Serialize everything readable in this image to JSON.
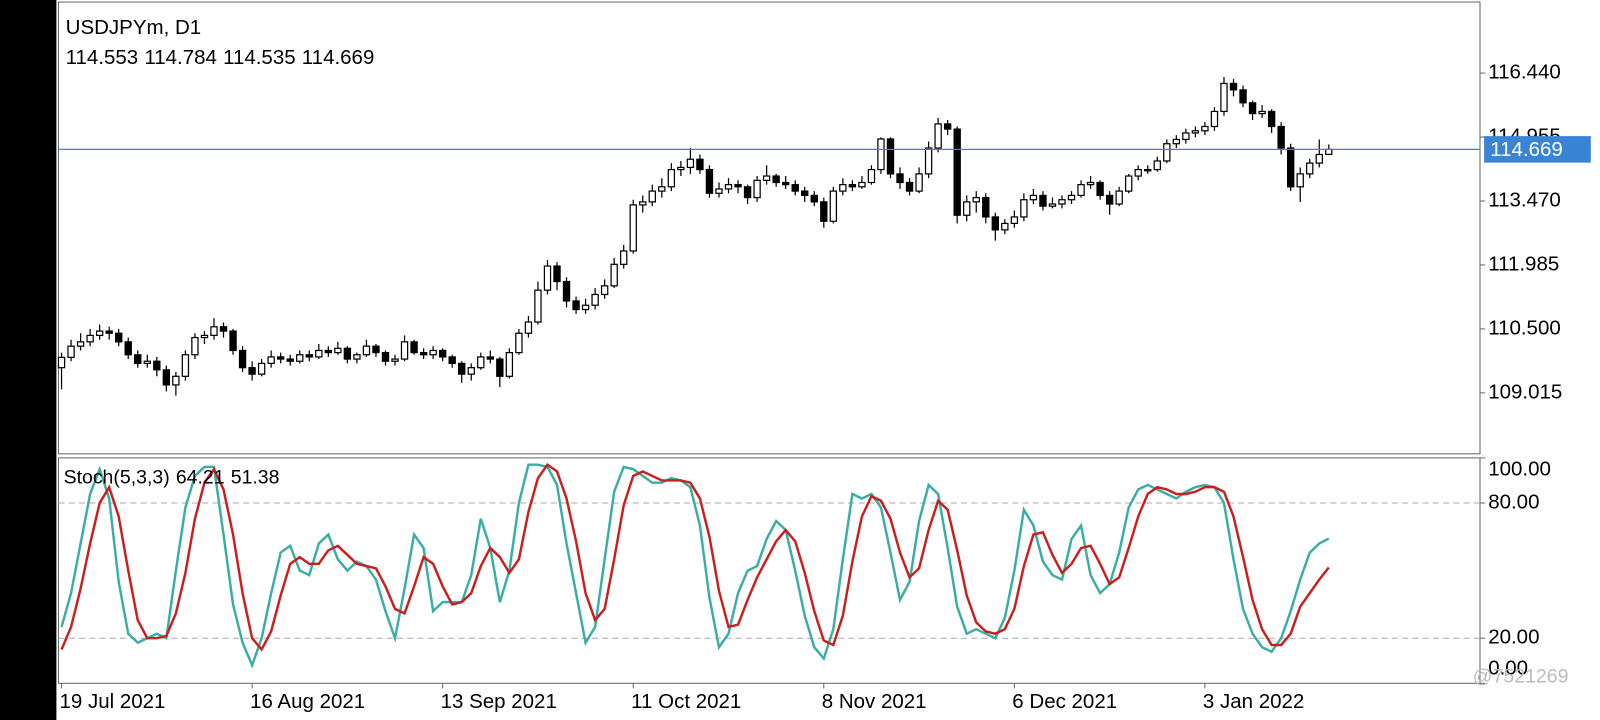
{
  "chart_data": [
    {
      "type": "candlestick",
      "title": "USDJPYm, D1",
      "categories": [
        "19 Jul 2021",
        null,
        null,
        null,
        null,
        null,
        null,
        null,
        null,
        null,
        null,
        null,
        null,
        null,
        null,
        null,
        null,
        null,
        null,
        null,
        "16 Aug 2021",
        null,
        null,
        null,
        null,
        null,
        null,
        null,
        null,
        null,
        null,
        null,
        null,
        null,
        null,
        null,
        null,
        null,
        null,
        null,
        "13 Sep 2021",
        null,
        null,
        null,
        null,
        null,
        null,
        null,
        null,
        null,
        null,
        null,
        null,
        null,
        null,
        null,
        null,
        null,
        null,
        null,
        "11 Oct 2021",
        null,
        null,
        null,
        null,
        null,
        null,
        null,
        null,
        null,
        null,
        null,
        null,
        null,
        null,
        null,
        null,
        null,
        null,
        null,
        "8 Nov 2021",
        null,
        null,
        null,
        null,
        null,
        null,
        null,
        null,
        null,
        null,
        null,
        null,
        null,
        null,
        null,
        null,
        null,
        null,
        null,
        "6 Dec 2021",
        null,
        null,
        null,
        null,
        null,
        null,
        null,
        null,
        null,
        null,
        null,
        null,
        null,
        null,
        null,
        null,
        null,
        null,
        null,
        "3 Jan 2022",
        null,
        null,
        null,
        null,
        null,
        null,
        null,
        null,
        null,
        null,
        null,
        null,
        null
      ],
      "ohlc": [
        [
          109.6,
          109.95,
          109.1,
          109.84
        ],
        [
          109.84,
          110.25,
          109.75,
          110.1
        ],
        [
          110.1,
          110.4,
          110.0,
          110.2
        ],
        [
          110.2,
          110.5,
          110.1,
          110.35
        ],
        [
          110.35,
          110.6,
          110.25,
          110.45
        ],
        [
          110.45,
          110.55,
          110.25,
          110.4
        ],
        [
          110.4,
          110.5,
          110.1,
          110.2
        ],
        [
          110.2,
          110.3,
          109.8,
          109.9
        ],
        [
          109.9,
          110.0,
          109.6,
          109.7
        ],
        [
          109.7,
          109.9,
          109.6,
          109.75
        ],
        [
          109.75,
          109.85,
          109.4,
          109.55
        ],
        [
          109.55,
          109.65,
          109.05,
          109.2
        ],
        [
          109.2,
          109.5,
          108.95,
          109.4
        ],
        [
          109.4,
          110.0,
          109.3,
          109.9
        ],
        [
          109.9,
          110.4,
          109.8,
          110.3
        ],
        [
          110.3,
          110.45,
          110.15,
          110.35
        ],
        [
          110.35,
          110.75,
          110.25,
          110.55
        ],
        [
          110.55,
          110.65,
          110.3,
          110.45
        ],
        [
          110.45,
          110.5,
          109.9,
          110.0
        ],
        [
          110.0,
          110.1,
          109.5,
          109.6
        ],
        [
          109.6,
          109.75,
          109.3,
          109.45
        ],
        [
          109.45,
          109.8,
          109.4,
          109.7
        ],
        [
          109.7,
          110.0,
          109.6,
          109.85
        ],
        [
          109.85,
          109.95,
          109.7,
          109.8
        ],
        [
          109.8,
          109.9,
          109.65,
          109.75
        ],
        [
          109.75,
          110.0,
          109.7,
          109.9
        ],
        [
          109.9,
          110.0,
          109.75,
          109.85
        ],
        [
          109.85,
          110.15,
          109.8,
          110.0
        ],
        [
          110.0,
          110.1,
          109.85,
          109.95
        ],
        [
          109.95,
          110.2,
          109.9,
          110.05
        ],
        [
          110.05,
          110.1,
          109.7,
          109.8
        ],
        [
          109.8,
          109.95,
          109.7,
          109.9
        ],
        [
          109.9,
          110.25,
          109.85,
          110.1
        ],
        [
          110.1,
          110.15,
          109.85,
          109.95
        ],
        [
          109.95,
          110.0,
          109.65,
          109.75
        ],
        [
          109.75,
          109.9,
          109.65,
          109.8
        ],
        [
          109.8,
          110.35,
          109.75,
          110.2
        ],
        [
          110.2,
          110.25,
          109.9,
          109.95
        ],
        [
          109.95,
          110.05,
          109.8,
          109.9
        ],
        [
          109.9,
          110.1,
          109.8,
          110.0
        ],
        [
          110.0,
          110.05,
          109.75,
          109.85
        ],
        [
          109.85,
          109.9,
          109.6,
          109.7
        ],
        [
          109.7,
          109.75,
          109.25,
          109.45
        ],
        [
          109.45,
          109.7,
          109.3,
          109.6
        ],
        [
          109.6,
          109.95,
          109.55,
          109.85
        ],
        [
          109.85,
          110.0,
          109.7,
          109.8
        ],
        [
          109.8,
          109.85,
          109.15,
          109.4
        ],
        [
          109.4,
          110.05,
          109.35,
          109.95
        ],
        [
          109.95,
          110.5,
          109.9,
          110.4
        ],
        [
          110.4,
          110.8,
          110.3,
          110.66
        ],
        [
          110.66,
          111.6,
          110.6,
          111.4
        ],
        [
          111.4,
          112.1,
          111.3,
          111.96
        ],
        [
          111.96,
          112.05,
          111.4,
          111.6
        ],
        [
          111.6,
          111.7,
          111.0,
          111.15
        ],
        [
          111.15,
          111.25,
          110.85,
          110.95
        ],
        [
          110.95,
          111.2,
          110.85,
          111.05
        ],
        [
          111.05,
          111.45,
          110.95,
          111.3
        ],
        [
          111.3,
          111.65,
          111.2,
          111.5
        ],
        [
          111.5,
          112.15,
          111.45,
          112.0
        ],
        [
          112.0,
          112.45,
          111.9,
          112.31
        ],
        [
          112.31,
          113.5,
          112.25,
          113.38
        ],
        [
          113.38,
          113.6,
          113.2,
          113.45
        ],
        [
          113.45,
          113.85,
          113.35,
          113.7
        ],
        [
          113.7,
          114.0,
          113.55,
          113.8
        ],
        [
          113.8,
          114.35,
          113.7,
          114.2
        ],
        [
          114.2,
          114.4,
          114.05,
          114.25
        ],
        [
          114.25,
          114.7,
          114.1,
          114.44
        ],
        [
          114.44,
          114.55,
          114.1,
          114.2
        ],
        [
          114.2,
          114.3,
          113.55,
          113.65
        ],
        [
          113.65,
          113.9,
          113.55,
          113.75
        ],
        [
          113.75,
          114.0,
          113.65,
          113.85
        ],
        [
          113.85,
          113.95,
          113.65,
          113.8
        ],
        [
          113.8,
          113.85,
          113.4,
          113.55
        ],
        [
          113.55,
          114.05,
          113.45,
          113.95
        ],
        [
          113.95,
          114.3,
          113.85,
          114.05
        ],
        [
          114.05,
          114.1,
          113.8,
          113.9
        ],
        [
          113.9,
          114.05,
          113.75,
          113.85
        ],
        [
          113.85,
          113.95,
          113.6,
          113.7
        ],
        [
          113.7,
          113.8,
          113.45,
          113.6
        ],
        [
          113.6,
          113.7,
          113.35,
          113.45
        ],
        [
          113.45,
          113.55,
          112.85,
          113.0
        ],
        [
          113.0,
          113.8,
          112.95,
          113.7
        ],
        [
          113.7,
          114.0,
          113.6,
          113.85
        ],
        [
          113.85,
          113.95,
          113.7,
          113.8
        ],
        [
          113.8,
          114.05,
          113.75,
          113.9
        ],
        [
          113.9,
          114.3,
          113.85,
          114.2
        ],
        [
          114.2,
          114.95,
          114.1,
          114.91
        ],
        [
          114.91,
          114.95,
          114.0,
          114.1
        ],
        [
          114.1,
          114.25,
          113.75,
          113.9
        ],
        [
          113.9,
          114.0,
          113.6,
          113.7
        ],
        [
          113.7,
          114.25,
          113.65,
          114.1
        ],
        [
          114.1,
          114.85,
          114.0,
          114.7
        ],
        [
          114.7,
          115.4,
          114.6,
          115.26
        ],
        [
          115.26,
          115.35,
          115.0,
          115.14
        ],
        [
          115.14,
          115.2,
          112.95,
          113.14
        ],
        [
          113.14,
          113.6,
          113.0,
          113.45
        ],
        [
          113.45,
          113.7,
          113.2,
          113.55
        ],
        [
          113.55,
          113.65,
          112.95,
          113.1
        ],
        [
          113.1,
          113.2,
          112.55,
          112.8
        ],
        [
          112.8,
          113.05,
          112.7,
          112.95
        ],
        [
          112.95,
          113.25,
          112.85,
          113.1
        ],
        [
          113.1,
          113.65,
          113.0,
          113.5
        ],
        [
          113.5,
          113.75,
          113.4,
          113.6
        ],
        [
          113.6,
          113.7,
          113.25,
          113.35
        ],
        [
          113.35,
          113.55,
          113.3,
          113.4
        ],
        [
          113.4,
          113.6,
          113.3,
          113.5
        ],
        [
          113.5,
          113.7,
          113.4,
          113.6
        ],
        [
          113.6,
          113.95,
          113.55,
          113.85
        ],
        [
          113.85,
          114.05,
          113.75,
          113.9
        ],
        [
          113.9,
          113.95,
          113.5,
          113.6
        ],
        [
          113.6,
          113.7,
          113.15,
          113.4
        ],
        [
          113.4,
          113.8,
          113.35,
          113.7
        ],
        [
          113.7,
          114.1,
          113.65,
          114.05
        ],
        [
          114.05,
          114.3,
          113.95,
          114.2
        ],
        [
          114.2,
          114.3,
          114.1,
          114.2
        ],
        [
          114.2,
          114.5,
          114.15,
          114.4
        ],
        [
          114.4,
          114.9,
          114.35,
          114.8
        ],
        [
          114.8,
          115.0,
          114.7,
          114.9
        ],
        [
          114.9,
          115.15,
          114.8,
          115.05
        ],
        [
          115.05,
          115.2,
          114.95,
          115.1
        ],
        [
          115.1,
          115.3,
          115.0,
          115.2
        ],
        [
          115.2,
          115.65,
          115.1,
          115.55
        ],
        [
          115.55,
          116.35,
          115.45,
          116.2
        ],
        [
          116.2,
          116.3,
          115.9,
          116.05
        ],
        [
          116.05,
          116.15,
          115.65,
          115.75
        ],
        [
          115.75,
          115.8,
          115.35,
          115.5
        ],
        [
          115.5,
          115.7,
          115.4,
          115.55
        ],
        [
          115.55,
          115.6,
          115.05,
          115.2
        ],
        [
          115.2,
          115.3,
          114.55,
          114.7
        ],
        [
          114.7,
          114.8,
          113.7,
          113.8
        ],
        [
          113.8,
          114.25,
          113.45,
          114.1
        ],
        [
          114.1,
          114.45,
          114.0,
          114.35
        ],
        [
          114.35,
          114.9,
          114.25,
          114.55
        ],
        [
          114.553,
          114.784,
          114.535,
          114.669
        ]
      ],
      "up_color": "#ffffff",
      "down_color": "#000000",
      "price_line_color": "#3a84d6",
      "ylim": [
        107.6,
        118.09
      ],
      "yticks": [
        109.015,
        {
          "value": 110.5,
          "label": "110.500"
        },
        111.985,
        {
          "value": 113.47,
          "label": "113.470"
        },
        114.955,
        {
          "value": 116.44,
          "label": "116.440"
        }
      ]
    },
    {
      "type": "line",
      "title": "Stoch(5,3,3)",
      "series": [
        {
          "color": "#3aaea4",
          "values": [
            25,
            40,
            62,
            84,
            95,
            82,
            45,
            22,
            18,
            20,
            22,
            20,
            50,
            78,
            92,
            96,
            96,
            66,
            35,
            18,
            8,
            20,
            40,
            58,
            61,
            50,
            48,
            62,
            66,
            55,
            50,
            54,
            52,
            46,
            32,
            20,
            42,
            66,
            60,
            32,
            36,
            36,
            36,
            48,
            73,
            60,
            36,
            50,
            80,
            97,
            97,
            96,
            88,
            62,
            40,
            18,
            25,
            55,
            85,
            96,
            95,
            92,
            89,
            89,
            91,
            90,
            87,
            70,
            38,
            16,
            22,
            40,
            50,
            52,
            64,
            72,
            68,
            50,
            30,
            16,
            11,
            24,
            55,
            84,
            82,
            84,
            78,
            58,
            37,
            45,
            72,
            88,
            84,
            60,
            34,
            22,
            24,
            22,
            20,
            29,
            50,
            77,
            70,
            54,
            48,
            46,
            64,
            70,
            48,
            40,
            44,
            58,
            78,
            86,
            88,
            86,
            84,
            82,
            85,
            87,
            88,
            87,
            80,
            55,
            33,
            22,
            16,
            14,
            20,
            32,
            46,
            58,
            62,
            64.21
          ]
        },
        {
          "color": "#c8201e",
          "values": [
            15,
            25,
            42,
            62,
            80,
            87,
            74,
            50,
            28,
            20,
            20,
            21,
            31,
            49,
            73,
            89,
            95,
            86,
            66,
            40,
            20,
            15,
            23,
            39,
            53,
            56,
            53,
            53,
            59,
            61,
            57,
            53,
            52,
            51,
            43,
            33,
            31,
            43,
            56,
            53,
            43,
            35,
            36,
            40,
            52,
            60,
            56,
            49,
            55,
            76,
            91,
            97,
            94,
            82,
            63,
            40,
            28,
            33,
            55,
            79,
            92,
            94,
            92,
            90,
            90,
            90,
            89,
            82,
            65,
            41,
            25,
            26,
            37,
            47,
            55,
            63,
            68,
            63,
            49,
            32,
            19,
            17,
            30,
            54,
            74,
            83,
            81,
            73,
            58,
            47,
            51,
            68,
            81,
            77,
            59,
            39,
            27,
            23,
            22,
            24,
            33,
            52,
            66,
            67,
            57,
            49,
            53,
            60,
            61,
            53,
            44,
            47,
            60,
            74,
            84,
            87,
            86,
            84,
            84,
            85,
            87,
            87,
            85,
            74,
            56,
            37,
            24,
            17,
            17,
            22,
            34,
            40,
            46,
            51.38
          ]
        }
      ],
      "ylim": [
        0,
        100
      ],
      "yticks": [
        {
          "value": 0,
          "label": "0.00"
        },
        {
          "value": 20,
          "label": "20.00"
        },
        {
          "value": 80,
          "label": "80.00"
        },
        {
          "value": 100,
          "label": "100.00"
        }
      ],
      "levels": [
        20,
        80
      ]
    }
  ],
  "watermark": "@7521269"
}
